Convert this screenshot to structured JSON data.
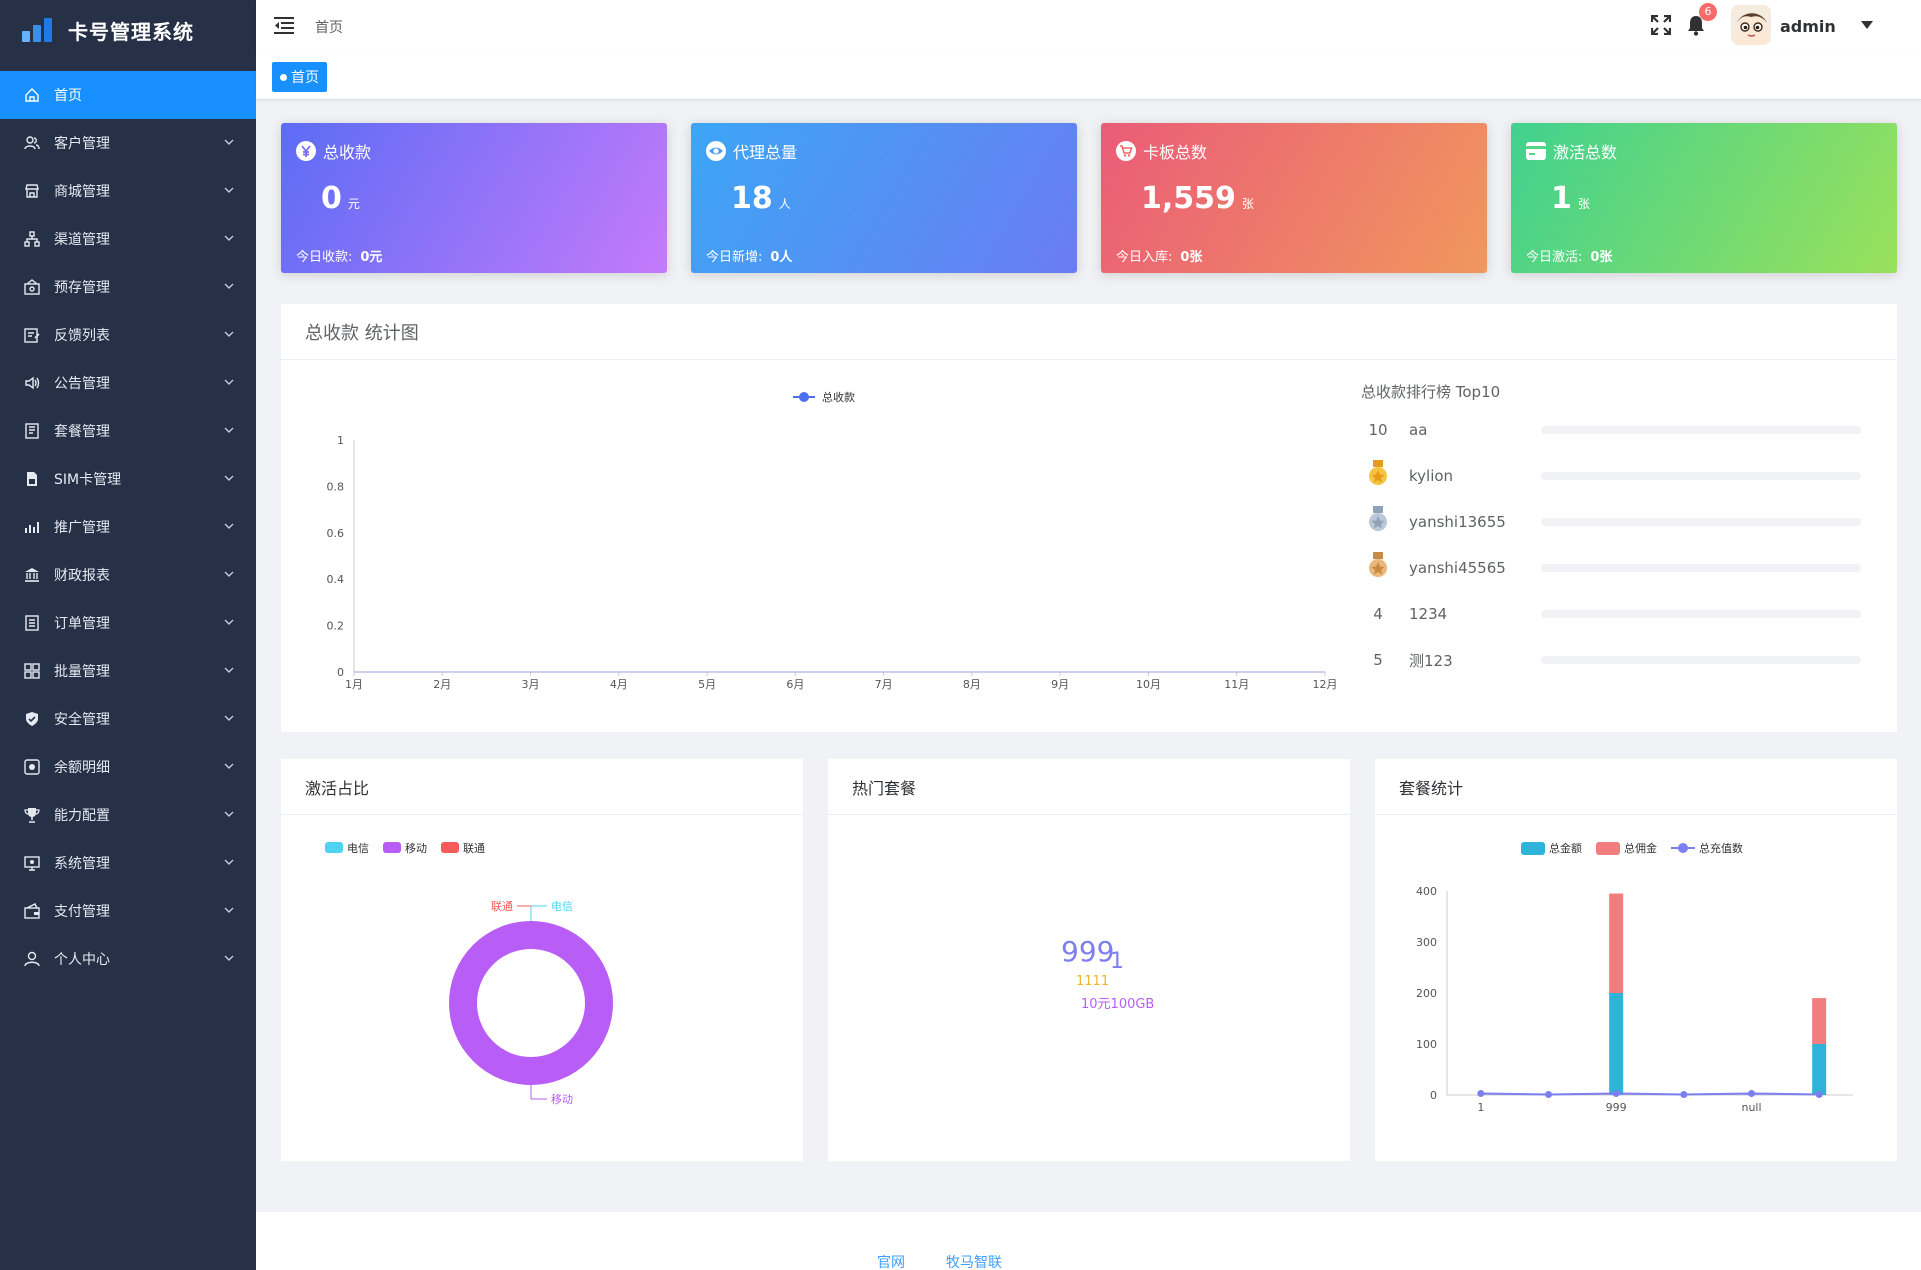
{
  "app": {
    "title": "卡号管理系统"
  },
  "sidebar": {
    "items": [
      {
        "label": "首页",
        "icon": "home-icon",
        "active": true
      },
      {
        "label": "客户管理",
        "icon": "users-icon"
      },
      {
        "label": "商城管理",
        "icon": "store-icon"
      },
      {
        "label": "渠道管理",
        "icon": "network-icon"
      },
      {
        "label": "预存管理",
        "icon": "deposit-icon"
      },
      {
        "label": "反馈列表",
        "icon": "feedback-icon"
      },
      {
        "label": "公告管理",
        "icon": "speaker-icon"
      },
      {
        "label": "套餐管理",
        "icon": "book-icon"
      },
      {
        "label": "SIM卡管理",
        "icon": "sim-icon"
      },
      {
        "label": "推广管理",
        "icon": "chart-icon"
      },
      {
        "label": "财政报表",
        "icon": "bank-icon"
      },
      {
        "label": "订单管理",
        "icon": "list-icon"
      },
      {
        "label": "批量管理",
        "icon": "grid-icon"
      },
      {
        "label": "安全管理",
        "icon": "shield-icon"
      },
      {
        "label": "余额明细",
        "icon": "balance-icon"
      },
      {
        "label": "能力配置",
        "icon": "trophy-icon"
      },
      {
        "label": "系统管理",
        "icon": "monitor-icon"
      },
      {
        "label": "支付管理",
        "icon": "wallet-icon"
      },
      {
        "label": "个人中心",
        "icon": "user-icon"
      }
    ]
  },
  "header": {
    "breadcrumb": "首页",
    "notification_count": "6",
    "username": "admin"
  },
  "tags": {
    "active": "首页"
  },
  "cards": [
    {
      "title": "总收款",
      "value": "0",
      "unit": "元",
      "footer_label": "今日收款:",
      "footer_value": "0元",
      "icon": "yen-icon"
    },
    {
      "title": "代理总量",
      "value": "18",
      "unit": "人",
      "footer_label": "今日新增:",
      "footer_value": "0人",
      "icon": "eye-icon"
    },
    {
      "title": "卡板总数",
      "value": "1,559",
      "unit": "张",
      "footer_label": "今日入库:",
      "footer_value": "0张",
      "icon": "cart-icon"
    },
    {
      "title": "激活总数",
      "value": "1",
      "unit": "张",
      "footer_label": "今日激活:",
      "footer_value": "0张",
      "icon": "card-icon"
    }
  ],
  "revenue_panel": {
    "title": "总收款 统计图",
    "ranking_title": "总收款排行榜 Top10",
    "ranking": [
      {
        "rank": "10",
        "name": "aa",
        "medal": null
      },
      {
        "rank": "",
        "name": "kylion",
        "medal": "gold"
      },
      {
        "rank": "",
        "name": "yanshi13655",
        "medal": "silver"
      },
      {
        "rank": "",
        "name": "yanshi45565",
        "medal": "bronze"
      },
      {
        "rank": "4",
        "name": "1234",
        "medal": null
      },
      {
        "rank": "5",
        "name": "测123",
        "medal": null
      }
    ]
  },
  "activation_panel": {
    "title": "激活占比"
  },
  "hot_panel": {
    "title": "热门套餐",
    "items": [
      "999",
      "1",
      "1111",
      "10元100GB"
    ]
  },
  "package_panel": {
    "title": "套餐统计"
  },
  "footer": {
    "links": [
      "官网",
      "牧马智联"
    ]
  },
  "colors": {
    "sidebar_bg": "#263147",
    "accent": "#1890ff"
  },
  "chart_data": [
    {
      "type": "line",
      "legend": [
        "总收款"
      ],
      "categories": [
        "1月",
        "2月",
        "3月",
        "4月",
        "5月",
        "6月",
        "7月",
        "8月",
        "9月",
        "10月",
        "11月",
        "12月"
      ],
      "series": [
        {
          "name": "总收款",
          "values": [
            0,
            0,
            0,
            0,
            0,
            0,
            0,
            0,
            0,
            0,
            0,
            0
          ]
        }
      ],
      "ylim": [
        0,
        1
      ],
      "yticks": [
        "0",
        "0.2",
        "0.4",
        "0.6",
        "0.8",
        "1"
      ],
      "color": "#4e6ef2"
    },
    {
      "type": "pie",
      "legend": [
        "电信",
        "移动",
        "联通"
      ],
      "slices": [
        {
          "name": "电信",
          "value": 0,
          "color": "#4cd4f0"
        },
        {
          "name": "移动",
          "value": 1,
          "color": "#b85df6"
        },
        {
          "name": "联通",
          "value": 0,
          "color": "#f55b5b"
        }
      ]
    },
    {
      "type": "bar",
      "legend": [
        "总金额",
        "总佣金",
        "总充值数"
      ],
      "categories": [
        "1",
        "",
        "999",
        "",
        "null",
        ""
      ],
      "series": [
        {
          "name": "总金额",
          "values": [
            0,
            0,
            200,
            0,
            0,
            100
          ],
          "color": "#30b3d8"
        },
        {
          "name": "总佣金",
          "values": [
            0,
            0,
            195,
            0,
            0,
            90
          ],
          "color": "#f27d7e"
        },
        {
          "name": "总充值数",
          "values": [
            3,
            1,
            3,
            1,
            3,
            1
          ],
          "color": "#7b7ff0"
        }
      ],
      "ylim": [
        0,
        400
      ],
      "yticks": [
        "0",
        "100",
        "200",
        "300",
        "400"
      ]
    }
  ]
}
